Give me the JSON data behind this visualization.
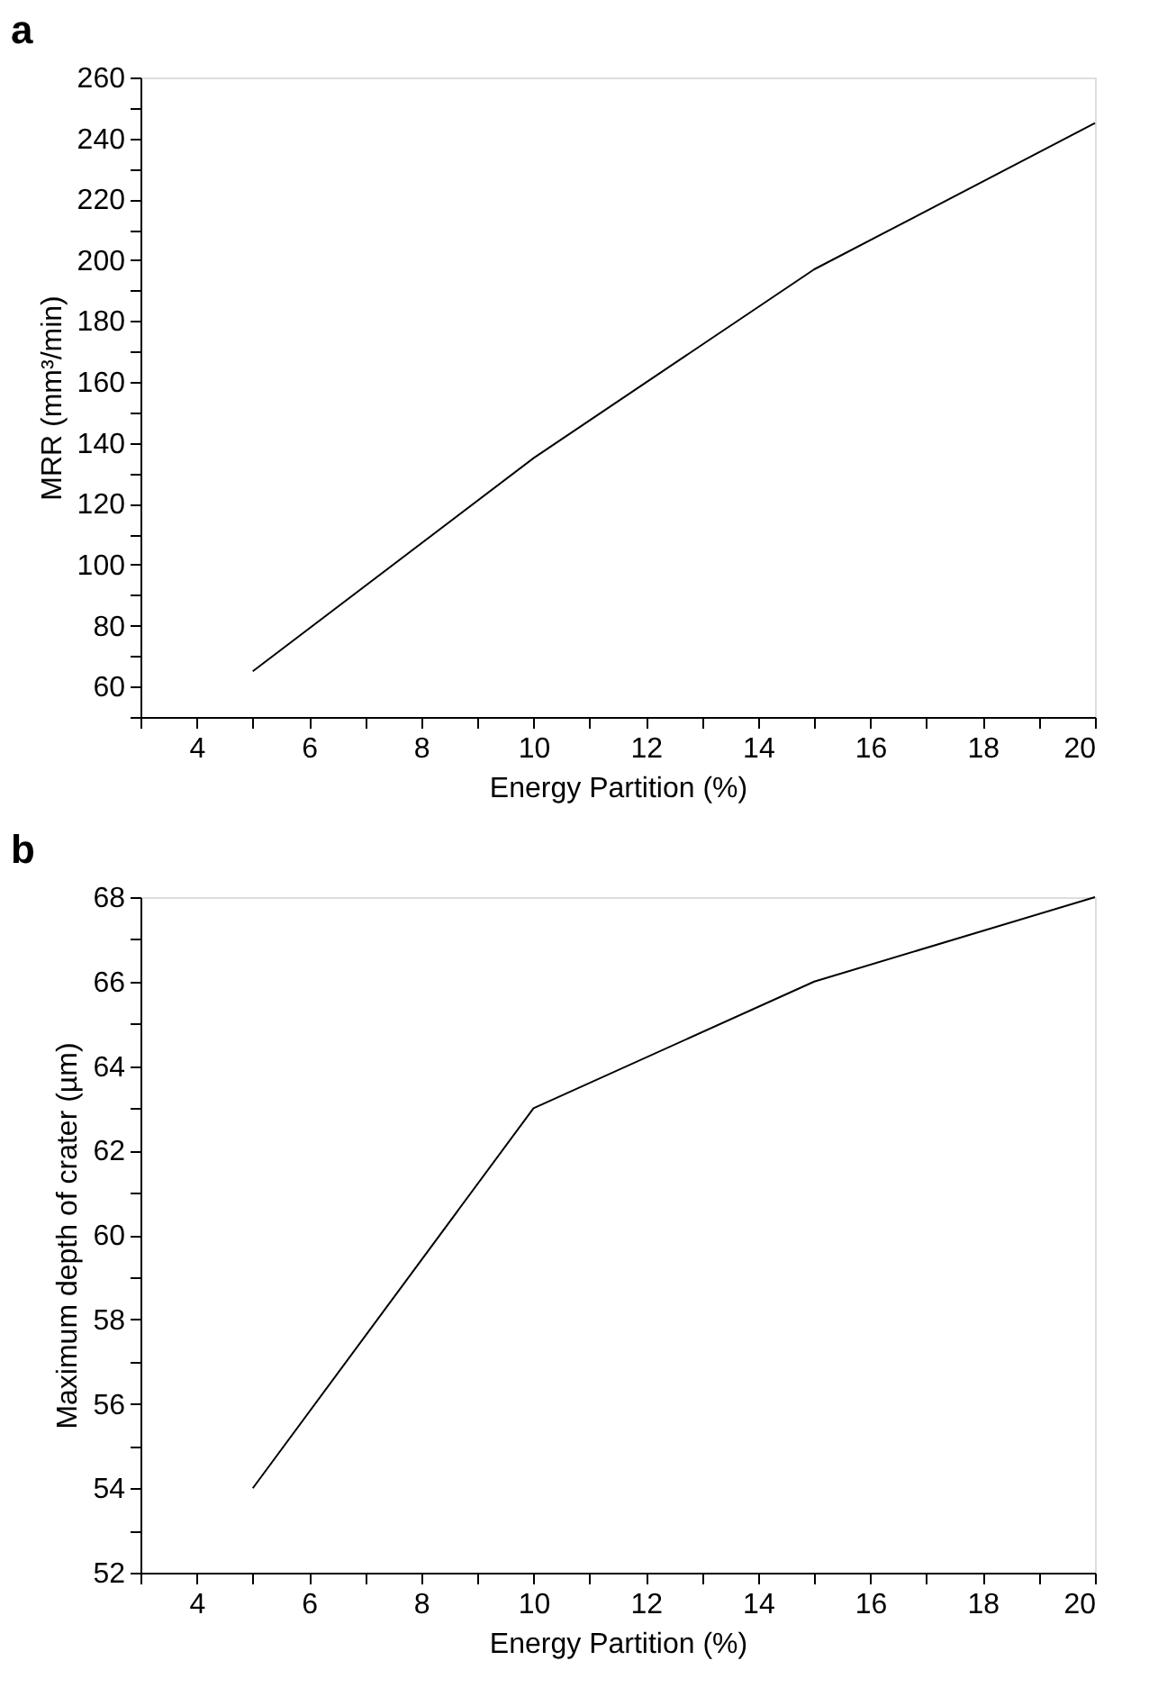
{
  "chart_data": [
    {
      "type": "line",
      "title": "a",
      "xlabel": "Energy Partition (%)",
      "ylabel": "MRR (mm³/min)",
      "x": [
        5,
        10,
        15,
        20
      ],
      "series": [
        {
          "color": "#000000",
          "values": [
            65,
            135,
            197,
            245
          ]
        }
      ],
      "xlim": [
        3,
        20
      ],
      "xticks": [
        {
          "value": 3,
          "label": null
        },
        4,
        {
          "value": 5,
          "label": null
        },
        6,
        {
          "value": 7,
          "label": null
        },
        8,
        {
          "value": 9,
          "label": null
        },
        10,
        {
          "value": 11,
          "label": null
        },
        12,
        {
          "value": 13,
          "label": null
        },
        14,
        {
          "value": 15,
          "label": null
        },
        16,
        {
          "value": 17,
          "label": null
        },
        18,
        {
          "value": 19,
          "label": null
        },
        20
      ],
      "ylim": [
        50,
        260
      ],
      "yticks": [
        {
          "value": 50,
          "label": null
        },
        60,
        {
          "value": 70,
          "label": null
        },
        80,
        {
          "value": 90,
          "label": null
        },
        100,
        {
          "value": 110,
          "label": null
        },
        120,
        {
          "value": 130,
          "label": null
        },
        140,
        {
          "value": 150,
          "label": null
        },
        160,
        {
          "value": 170,
          "label": null
        },
        180,
        {
          "value": 190,
          "label": null
        },
        200,
        {
          "value": 210,
          "label": null
        },
        220,
        {
          "value": 230,
          "label": null
        },
        240,
        {
          "value": 250,
          "label": null
        },
        260
      ],
      "grid": false,
      "marker": "none",
      "line_style": "solid"
    },
    {
      "type": "line",
      "title": "b",
      "xlabel": "Energy Partition (%)",
      "ylabel": "Maximum depth of crater (µm)",
      "x": [
        5,
        10,
        15,
        20
      ],
      "series": [
        {
          "color": "#000000",
          "values": [
            54,
            63,
            66,
            68
          ]
        }
      ],
      "xlim": [
        3,
        20
      ],
      "xticks": [
        {
          "value": 3,
          "label": null
        },
        4,
        {
          "value": 5,
          "label": null
        },
        6,
        {
          "value": 7,
          "label": null
        },
        8,
        {
          "value": 9,
          "label": null
        },
        10,
        {
          "value": 11,
          "label": null
        },
        12,
        {
          "value": 13,
          "label": null
        },
        14,
        {
          "value": 15,
          "label": null
        },
        16,
        {
          "value": 17,
          "label": null
        },
        18,
        {
          "value": 19,
          "label": null
        },
        20
      ],
      "ylim": [
        52,
        68
      ],
      "yticks": [
        52,
        {
          "value": 53,
          "label": null
        },
        54,
        {
          "value": 55,
          "label": null
        },
        56,
        {
          "value": 57,
          "label": null
        },
        58,
        {
          "value": 59,
          "label": null
        },
        60,
        {
          "value": 61,
          "label": null
        },
        62,
        {
          "value": 63,
          "label": null
        },
        64,
        {
          "value": 65,
          "label": null
        },
        66,
        {
          "value": 67,
          "label": null
        },
        68
      ],
      "grid": false,
      "marker": "none",
      "line_style": "solid"
    }
  ]
}
